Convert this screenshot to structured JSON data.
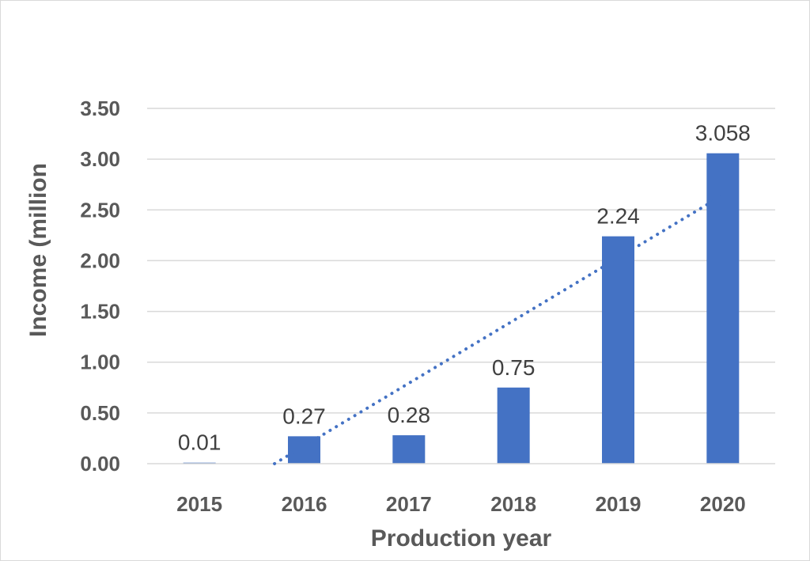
{
  "chart_data": {
    "type": "bar",
    "categories": [
      "2015",
      "2016",
      "2017",
      "2018",
      "2019",
      "2020"
    ],
    "values": [
      0.01,
      0.27,
      0.28,
      0.75,
      2.24,
      3.058
    ],
    "data_labels": [
      "0.01",
      "0.27",
      "0.28",
      "0.75",
      "2.24",
      "3.058"
    ],
    "title": "",
    "xlabel": "Production year",
    "ylabel": "Income (million",
    "ylim": [
      0,
      3.5
    ],
    "yticks": [
      "0.00",
      "0.50",
      "1.00",
      "1.50",
      "2.00",
      "2.50",
      "3.00",
      "3.50"
    ],
    "grid": true,
    "legend": "none",
    "trendline": {
      "type": "linear",
      "style": "dotted"
    },
    "colors": {
      "bar": "#4472C4",
      "trendline": "#4472C4",
      "grid": "#d9d9d9"
    }
  }
}
